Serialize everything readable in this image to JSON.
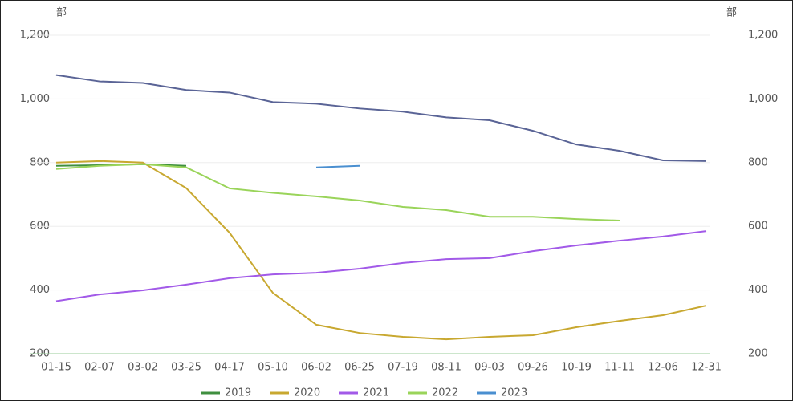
{
  "chart_data": {
    "type": "line",
    "unit": "部",
    "categories": [
      "01-15",
      "02-07",
      "03-02",
      "03-25",
      "04-17",
      "05-10",
      "06-02",
      "06-25",
      "07-19",
      "08-11",
      "09-03",
      "09-26",
      "10-19",
      "11-11",
      "12-06",
      "12-31"
    ],
    "series": [
      {
        "color": "#5a6496",
        "values": [
          1075,
          1055,
          1050,
          1028,
          1020,
          990,
          985,
          970,
          960,
          942,
          933,
          900,
          857,
          837,
          807,
          805
        ]
      },
      {
        "name": "2019",
        "color": "#3f8f3f",
        "values": [
          790,
          792,
          795,
          790,
          null,
          null,
          null,
          null,
          null,
          null,
          null,
          null,
          null,
          null,
          null,
          null
        ]
      },
      {
        "name": "2020",
        "color": "#c8a830",
        "values": [
          800,
          805,
          800,
          720,
          580,
          391,
          291,
          265,
          253,
          245,
          253,
          258,
          283,
          303,
          321,
          351
        ]
      },
      {
        "name": "2021",
        "color": "#a25ae8",
        "values": [
          365,
          386,
          399,
          417,
          437,
          449,
          454,
          467,
          485,
          497,
          500,
          522,
          540,
          555,
          568,
          585
        ]
      },
      {
        "name": "2022",
        "color": "#9ad45a",
        "values": [
          780,
          790,
          795,
          785,
          719,
          705,
          694,
          681,
          661,
          651,
          630,
          630,
          623,
          618,
          null,
          null
        ]
      },
      {
        "name": "2023",
        "color": "#4a8fd0",
        "values": [
          null,
          null,
          null,
          null,
          null,
          null,
          785,
          790,
          null,
          null,
          null,
          null,
          null,
          null,
          null,
          null
        ]
      }
    ],
    "ylim": [
      200,
      1200
    ],
    "yticks": [
      200,
      400,
      600,
      800,
      {
        "value": 1000,
        "label": "1,000"
      },
      {
        "value": 1200,
        "label": "1,200"
      }
    ],
    "grid": true
  }
}
